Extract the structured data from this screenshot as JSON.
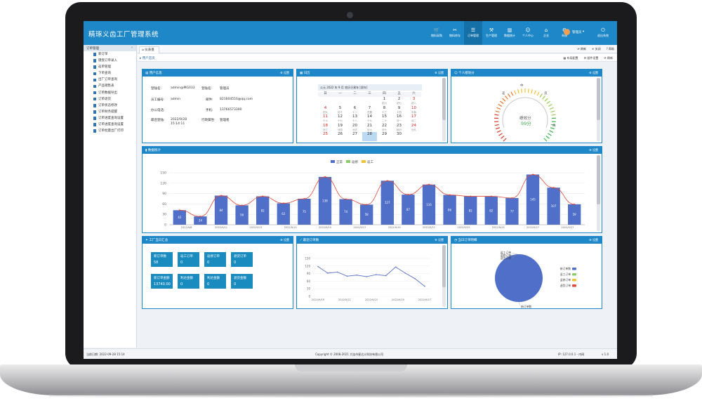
{
  "app": {
    "title": "精琢义齿工厂管理系统"
  },
  "topnav": [
    {
      "label": "物料采购",
      "icon": "cart-icon"
    },
    {
      "label": "物料库存",
      "icon": "tools-icon"
    },
    {
      "label": "订单管理",
      "icon": "list-icon"
    },
    {
      "label": "生产管理",
      "icon": "factory-icon"
    },
    {
      "label": "数据统计",
      "icon": "bar-chart-icon"
    },
    {
      "label": "个人中心",
      "icon": "person-icon"
    },
    {
      "label": "企业",
      "icon": "building-icon"
    },
    {
      "label": "系统",
      "icon": "gear-icon"
    }
  ],
  "user": {
    "name": "管理员",
    "exit": "退出系统"
  },
  "sidebar": {
    "title": "订单管理",
    "items": [
      "新订单",
      "键盘订单录入",
      "返单管理",
      "下单查询",
      "出厂订单查询",
      "产品销售表",
      "订单数据导出",
      "订单退货",
      "订单状态修改",
      "订单财务提醒",
      "订单进度查询设置",
      "订单进度查询设置",
      "订单批量出厂打印"
    ]
  },
  "tabs": {
    "active": "仪表盘",
    "tools": [
      "刷新",
      "关闭",
      "帮助"
    ]
  },
  "subbar": {
    "crumb": "用户首页",
    "tools": [
      "布局配置",
      "组件设置",
      "刷新"
    ]
  },
  "panels": {
    "user_info": {
      "title": "用户信息",
      "setting": "设置"
    },
    "calendar": {
      "title": "日历",
      "setting": "设置"
    },
    "performance": {
      "title": "个人绩效分",
      "setting": "设置"
    },
    "data_stats": {
      "title": "数据统计",
      "setting": "设置"
    },
    "factory_summary": {
      "title": "工厂当日汇总",
      "setting": "设置"
    },
    "recent_orders": {
      "title": "最近订单数",
      "setting": "设置"
    },
    "today_orders": {
      "title": "当日订单明细",
      "setting": "设置"
    }
  },
  "user_info": {
    "login_name_label": "登陆名:",
    "login_name": "admin@MG033",
    "user_name_label": "登陆名:",
    "user_name": "管理员",
    "emp_no_label": "员工编号:",
    "emp_no": "admin",
    "email_label": "邮件:",
    "email": "82160455S@qq.com",
    "office_phone_label": "办公电话:",
    "office_phone": "",
    "mobile_label": "手机:",
    "mobile": "13766573390",
    "last_login_label": "最后登陆:",
    "last_login": "2022/9/28 15:14:11",
    "dept_label": "行政属性:",
    "dept": "管理者"
  },
  "calendar": {
    "bar": "公元 2022 年 9 月  农历壬寅年 [虎年]",
    "weekdays": [
      "日",
      "一",
      "二",
      "三",
      "四",
      "五",
      "六"
    ],
    "weeks": [
      [
        {
          "d": "",
          "l": ""
        },
        {
          "d": "",
          "l": ""
        },
        {
          "d": "",
          "l": ""
        },
        {
          "d": "",
          "l": ""
        },
        {
          "d": "1",
          "l": "初六"
        },
        {
          "d": "2",
          "l": "初七"
        },
        {
          "d": "3",
          "l": "初八"
        }
      ],
      [
        {
          "d": "4",
          "l": "初九"
        },
        {
          "d": "5",
          "l": "初十"
        },
        {
          "d": "6",
          "l": "十一"
        },
        {
          "d": "7",
          "l": "白露"
        },
        {
          "d": "8",
          "l": "十三"
        },
        {
          "d": "9",
          "l": "十四"
        },
        {
          "d": "10",
          "l": "中秋"
        }
      ],
      [
        {
          "d": "11",
          "l": "十六"
        },
        {
          "d": "12",
          "l": "十七"
        },
        {
          "d": "13",
          "l": "十八"
        },
        {
          "d": "14",
          "l": "十九"
        },
        {
          "d": "15",
          "l": "二十"
        },
        {
          "d": "16",
          "l": "廿一"
        },
        {
          "d": "17",
          "l": "廿二"
        }
      ],
      [
        {
          "d": "18",
          "l": "廿三"
        },
        {
          "d": "19",
          "l": "廿四"
        },
        {
          "d": "20",
          "l": "廿五"
        },
        {
          "d": "21",
          "l": "廿六"
        },
        {
          "d": "22",
          "l": "廿七"
        },
        {
          "d": "23",
          "l": "秋分"
        },
        {
          "d": "24",
          "l": "廿九"
        }
      ],
      [
        {
          "d": "25",
          "l": ""
        },
        {
          "d": "26",
          "l": ""
        },
        {
          "d": "27",
          "l": ""
        },
        {
          "d": "28",
          "l": ""
        },
        {
          "d": "29",
          "l": ""
        },
        {
          "d": "30",
          "l": ""
        },
        {
          "d": "",
          "l": ""
        }
      ]
    ],
    "today": "28"
  },
  "performance": {
    "label": "绩效分",
    "score": "99分",
    "scale": [
      "差",
      "中",
      "良",
      "优"
    ]
  },
  "factory_summary": {
    "tiles": [
      {
        "label": "新订单数",
        "value": "58"
      },
      {
        "label": "返工订单",
        "value": "0"
      },
      {
        "label": "返修订单",
        "value": "0"
      },
      {
        "label": "退货订单",
        "value": "0"
      },
      {
        "label": "新订单金额",
        "value": "13740.00"
      },
      {
        "label": "利达金额",
        "value": "0"
      },
      {
        "label": "利达金额",
        "value": "0"
      },
      {
        "label": "退货金额",
        "value": "0"
      }
    ]
  },
  "pie_legend": [
    "新订单数",
    "返工订单",
    "返修订单",
    "退货订单"
  ],
  "pie_labels": [
    "返工订单",
    "返修订单",
    "退货订单",
    "新订单数"
  ],
  "footer": {
    "left": "当前日期: 2022-09-28 15:14",
    "center": "Copyright © 2008-2021 大连市星达义科技有限公司",
    "ip": "IP: 127.0.0.1 - 内网",
    "version": "v 1.0"
  },
  "chart_data": [
    {
      "type": "bar",
      "title": "",
      "legend": [
        "正常",
        "返修",
        "返工"
      ],
      "legend_colors": [
        "#4f6fc8",
        "#8ccf6a",
        "#f2c13a"
      ],
      "ylim": [
        0,
        150
      ],
      "yticks": [
        0,
        30,
        60,
        90,
        120,
        150
      ],
      "x_tick_labels": [
        "2022/9/8",
        "2022/9/11",
        "2022/9/13",
        "2022/9/13",
        "2022/9/15",
        "2022/9/17",
        "2022/9/19",
        "2022/9/21",
        "2022/9/23",
        "2022/9/25",
        "2022/9/27",
        "2022/9/27"
      ],
      "series": [
        {
          "name": "正常",
          "values": [
            42,
            24,
            84,
            56,
            82,
            62,
            75,
            138,
            74,
            58,
            127,
            87,
            116,
            86,
            82,
            82,
            77,
            145,
            107,
            59
          ]
        }
      ],
      "line_color": "#e04a3a"
    },
    {
      "type": "line",
      "ylim": [
        0,
        150
      ],
      "yticks": [
        0,
        30,
        60,
        90,
        120,
        150
      ],
      "x_tick_labels": [
        "2022/9/19",
        "2022/9/21",
        "2022/9/23",
        "2022/9/25",
        "2022/9/27"
      ],
      "series": [
        {
          "values": [
            118,
            92,
            96,
            80,
            84,
            78,
            86,
            82,
            116,
            92,
            70,
            40
          ]
        }
      ]
    },
    {
      "type": "pie",
      "series": [
        {
          "values": [
            100,
            0,
            0,
            0
          ]
        }
      ],
      "colors": [
        "#4f6fc8",
        "#8ccf6a",
        "#f2c13a",
        "#e04a3a"
      ]
    }
  ]
}
